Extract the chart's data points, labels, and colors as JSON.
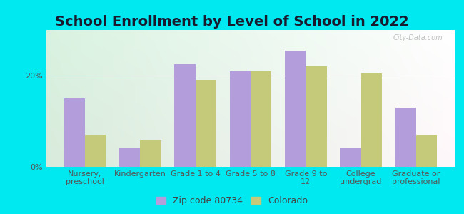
{
  "title": "School Enrollment by Level of School in 2022",
  "categories": [
    "Nursery,\npreschool",
    "Kindergarten",
    "Grade 1 to 4",
    "Grade 5 to 8",
    "Grade 9 to\n12",
    "College\nundergrad",
    "Graduate or\nprofessional"
  ],
  "zip_values": [
    15.0,
    4.0,
    22.5,
    21.0,
    25.5,
    4.0,
    13.0
  ],
  "co_values": [
    7.0,
    6.0,
    19.0,
    21.0,
    22.0,
    20.5,
    7.0
  ],
  "zip_color": "#b39ddb",
  "co_color": "#c5c97a",
  "zip_label": "Zip code 80734",
  "co_label": "Colorado",
  "background_outer": "#00e8f0",
  "yticks": [
    0,
    20
  ],
  "ylim": [
    0,
    30
  ],
  "bar_width": 0.38,
  "title_fontsize": 14,
  "tick_fontsize": 8,
  "legend_fontsize": 9,
  "watermark": "City-Data.com"
}
